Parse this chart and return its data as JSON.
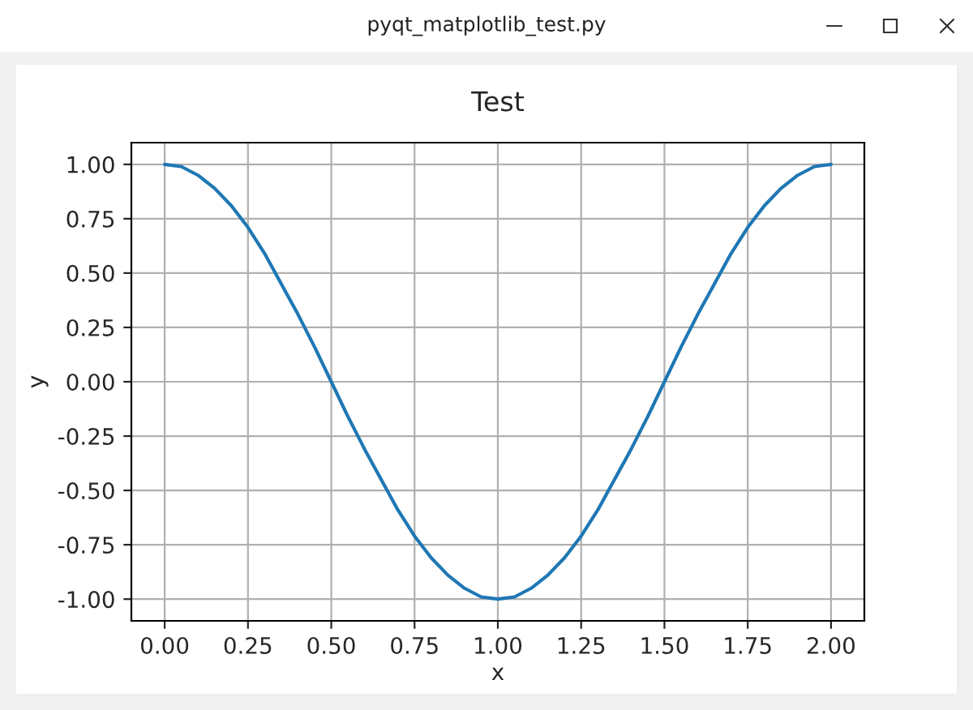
{
  "chart_data": {
    "type": "line",
    "title": "Test",
    "xlabel": "x",
    "ylabel": "y",
    "annotations": [
      "pyqt_matplotlib_test.py"
    ],
    "x": [
      0,
      0.05,
      0.1,
      0.15,
      0.2,
      0.25,
      0.3,
      0.35,
      0.4,
      0.45,
      0.5,
      0.55,
      0.6,
      0.65,
      0.7,
      0.75,
      0.8,
      0.85,
      0.9,
      0.95,
      1,
      1.05,
      1.1,
      1.15,
      1.2,
      1.25,
      1.3,
      1.35,
      1.4,
      1.45,
      1.5,
      1.55,
      1.6,
      1.65,
      1.7,
      1.75,
      1.8,
      1.85,
      1.9,
      1.95,
      2
    ],
    "series": [
      {
        "color": "#1f77b4",
        "values": [
          1,
          0.99,
          0.95,
          0.89,
          0.81,
          0.71,
          0.59,
          0.45,
          0.31,
          0.16,
          0,
          -0.16,
          -0.31,
          -0.45,
          -0.59,
          -0.71,
          -0.81,
          -0.89,
          -0.95,
          -0.99,
          -1,
          -0.99,
          -0.95,
          -0.89,
          -0.81,
          -0.71,
          -0.59,
          -0.45,
          -0.31,
          -0.16,
          0,
          0.16,
          0.31,
          0.45,
          0.59,
          0.71,
          0.81,
          0.89,
          0.95,
          0.99,
          1
        ]
      }
    ],
    "xlim": [
      -0.1,
      2.1
    ],
    "ylim": [
      -1.1,
      1.1
    ],
    "xticks": [
      {
        "value": 0,
        "label": "0.00"
      },
      {
        "value": 0.25,
        "label": "0.25"
      },
      {
        "value": 0.5,
        "label": "0.50"
      },
      {
        "value": 0.75,
        "label": "0.75"
      },
      {
        "value": 1,
        "label": "1.00"
      },
      {
        "value": 1.25,
        "label": "1.25"
      },
      {
        "value": 1.5,
        "label": "1.50"
      },
      {
        "value": 1.75,
        "label": "1.75"
      },
      {
        "value": 2,
        "label": "2.00"
      }
    ],
    "yticks": [
      {
        "value": -1,
        "label": "-1.00"
      },
      {
        "value": -0.75,
        "label": "-0.75"
      },
      {
        "value": -0.5,
        "label": "-0.50"
      },
      {
        "value": -0.25,
        "label": "-0.25"
      },
      {
        "value": 0,
        "label": "0.00"
      },
      {
        "value": 0.25,
        "label": "0.25"
      },
      {
        "value": 0.5,
        "label": "0.50"
      },
      {
        "value": 0.75,
        "label": "0.75"
      },
      {
        "value": 1,
        "label": "1.00"
      }
    ],
    "grid": true,
    "legend": false,
    "marker": "none",
    "line_style": "solid"
  }
}
